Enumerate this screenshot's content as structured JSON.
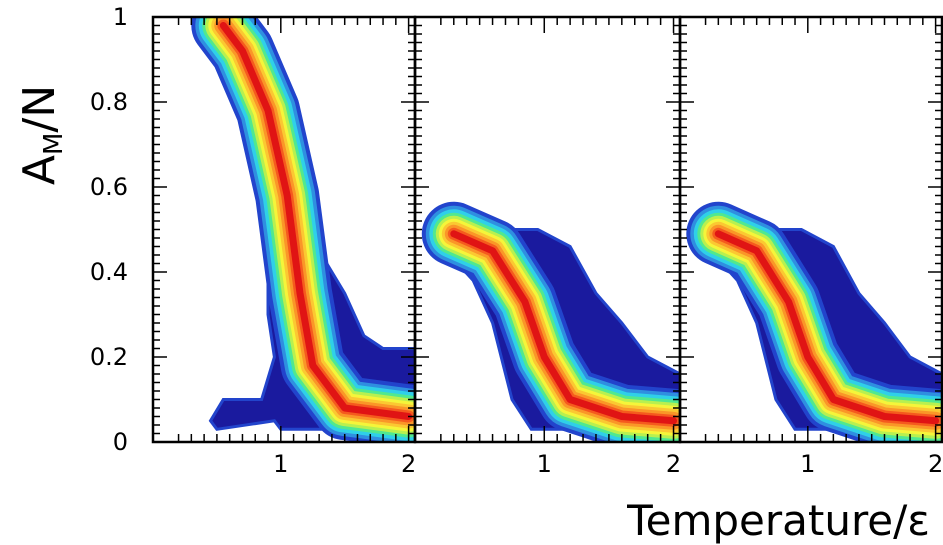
{
  "chart_data": {
    "type": "heatmap",
    "layout": "three side-by-side panels sharing the y axis",
    "ylabel": "A_M/N",
    "ylabel_main": "A",
    "ylabel_sub": "M",
    "ylabel_rest": "/N",
    "xlabel": "Temperature/ε",
    "ylim": [
      0,
      1
    ],
    "yticks": [
      0,
      0.2,
      0.4,
      0.6,
      0.8,
      1
    ],
    "ytick_labels": [
      "0",
      "0.2",
      "0.4",
      "0.6",
      "0.8",
      "1"
    ],
    "xlim": [
      0,
      2.05
    ],
    "xticks": [
      1,
      2
    ],
    "xtick_labels": [
      "1",
      "2"
    ],
    "colormap": [
      "#1a1a9e",
      "#2244cc",
      "#2f8fe0",
      "#2fd0e8",
      "#50e890",
      "#b8f050",
      "#f5f53a",
      "#fbc832",
      "#fa9628",
      "#f55a1e",
      "#e01414"
    ],
    "panels": [
      {
        "name": "left",
        "outer_band": [
          [
            0.5,
            1
          ],
          [
            0.75,
            1
          ],
          [
            0.77,
            0.97
          ],
          [
            0.9,
            0.82
          ],
          [
            0.93,
            0.7
          ],
          [
            1.05,
            0.6
          ],
          [
            1.3,
            0.45
          ],
          [
            1.5,
            0.35
          ],
          [
            1.65,
            0.25
          ],
          [
            1.8,
            0.22
          ],
          [
            2.05,
            0.22
          ],
          [
            2.05,
            0.03
          ],
          [
            1.0,
            0.03
          ],
          [
            0.95,
            0.05
          ],
          [
            0.5,
            0.03
          ],
          [
            0.45,
            0.05
          ],
          [
            0.55,
            0.1
          ],
          [
            0.85,
            0.1
          ],
          [
            0.95,
            0.2
          ],
          [
            0.9,
            0.3
          ],
          [
            0.9,
            0.6
          ],
          [
            0.8,
            0.72
          ],
          [
            0.7,
            0.8
          ],
          [
            0.65,
            0.9
          ],
          [
            0.5,
            0.95
          ]
        ],
        "ridge": [
          [
            0.55,
            0.98
          ],
          [
            0.7,
            0.92
          ],
          [
            0.9,
            0.78
          ],
          [
            1.05,
            0.58
          ],
          [
            1.15,
            0.35
          ],
          [
            1.25,
            0.18
          ],
          [
            1.5,
            0.08
          ],
          [
            2.0,
            0.06
          ]
        ]
      },
      {
        "name": "middle",
        "outer_band": [
          [
            0.2,
            0.5
          ],
          [
            0.95,
            0.5
          ],
          [
            1.2,
            0.46
          ],
          [
            1.4,
            0.35
          ],
          [
            1.6,
            0.28
          ],
          [
            1.8,
            0.2
          ],
          [
            2.05,
            0.16
          ],
          [
            2.05,
            0.03
          ],
          [
            1.0,
            0.03
          ],
          [
            0.9,
            0.03
          ],
          [
            0.75,
            0.1
          ],
          [
            0.6,
            0.28
          ],
          [
            0.45,
            0.38
          ],
          [
            0.3,
            0.43
          ],
          [
            0.2,
            0.47
          ]
        ],
        "ridge": [
          [
            0.3,
            0.49
          ],
          [
            0.6,
            0.45
          ],
          [
            0.85,
            0.33
          ],
          [
            1.0,
            0.2
          ],
          [
            1.2,
            0.1
          ],
          [
            1.6,
            0.06
          ],
          [
            2.0,
            0.05
          ]
        ]
      },
      {
        "name": "right",
        "outer_band": [
          [
            0.2,
            0.5
          ],
          [
            0.95,
            0.5
          ],
          [
            1.2,
            0.46
          ],
          [
            1.4,
            0.35
          ],
          [
            1.6,
            0.28
          ],
          [
            1.8,
            0.2
          ],
          [
            2.05,
            0.16
          ],
          [
            2.05,
            0.03
          ],
          [
            1.0,
            0.03
          ],
          [
            0.9,
            0.03
          ],
          [
            0.75,
            0.1
          ],
          [
            0.6,
            0.28
          ],
          [
            0.45,
            0.38
          ],
          [
            0.3,
            0.43
          ],
          [
            0.2,
            0.47
          ]
        ],
        "ridge": [
          [
            0.3,
            0.49
          ],
          [
            0.6,
            0.45
          ],
          [
            0.85,
            0.33
          ],
          [
            1.0,
            0.2
          ],
          [
            1.2,
            0.1
          ],
          [
            1.6,
            0.06
          ],
          [
            2.0,
            0.05
          ]
        ]
      }
    ]
  }
}
